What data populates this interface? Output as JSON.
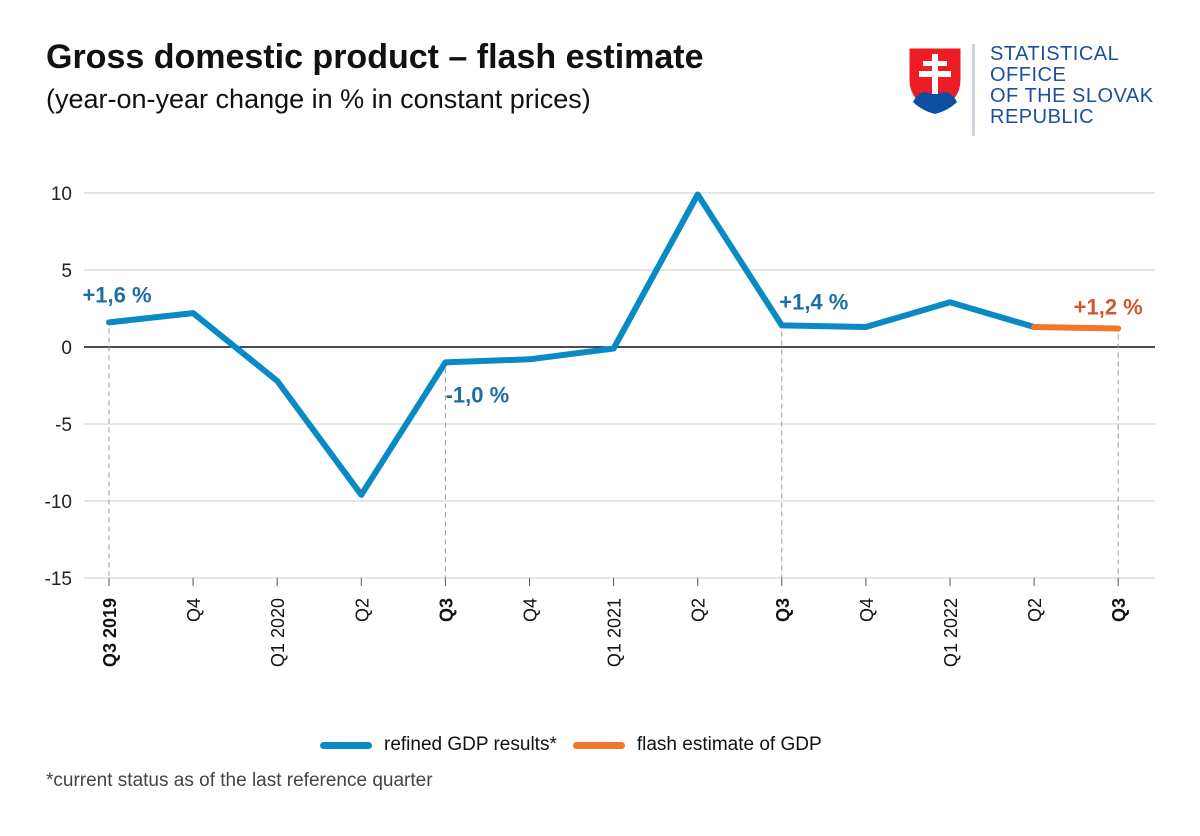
{
  "header": {
    "title": "Gross domestic product – flash estimate",
    "subtitle": "(year-on-year change in % in constant prices)"
  },
  "logo": {
    "lines": [
      "STATISTICAL",
      "OFFICE",
      "OF THE SLOVAK",
      "REPUBLIC"
    ],
    "emblem_icon": "slovak-coat-of-arms-icon",
    "text_color": "#1e4f9e"
  },
  "colors": {
    "refined": "#0a8ac4",
    "flash": "#f07826",
    "label_refined": "#1c6fa3",
    "label_flash": "#d2562a",
    "grid": "#cccccc",
    "zero_line": "#111111"
  },
  "chart_data": {
    "type": "line",
    "title": "Gross domestic product – flash estimate",
    "subtitle": "(year-on-year change in % in constant prices)",
    "categories": [
      "Q3 2019",
      "Q4",
      "Q1 2020",
      "Q2",
      "Q3",
      "Q4",
      "Q1 2021",
      "Q2",
      "Q3",
      "Q4",
      "Q1 2022",
      "Q2",
      "Q3"
    ],
    "bold_categories": [
      "Q3 2019",
      "Q3",
      "Q3",
      "Q3"
    ],
    "bold_indices": [
      0,
      4,
      8,
      12
    ],
    "ylim": [
      -15,
      10
    ],
    "yticks": [
      -15,
      -10,
      -5,
      0,
      5,
      10
    ],
    "xlabel": "",
    "ylabel": "",
    "grid": true,
    "series": [
      {
        "name": "refined GDP results*",
        "values": [
          1.6,
          2.2,
          -2.2,
          -9.6,
          -1.0,
          -0.8,
          -0.1,
          9.9,
          1.4,
          1.3,
          2.9,
          1.3,
          null
        ]
      },
      {
        "name": "flash estimate of GDP",
        "values": [
          null,
          null,
          null,
          null,
          null,
          null,
          null,
          null,
          null,
          null,
          null,
          1.3,
          1.2
        ]
      }
    ],
    "annotations": [
      {
        "index": 0,
        "value": 1.6,
        "text": "+1,6 %",
        "series": "refined GDP results*"
      },
      {
        "index": 4,
        "value": -1.0,
        "text": "-1,0 %",
        "series": "refined GDP results*"
      },
      {
        "index": 8,
        "value": 1.4,
        "text": "+1,4 %",
        "series": "refined GDP results*"
      },
      {
        "index": 12,
        "value": 1.2,
        "text": "+1,2 %",
        "series": "flash estimate of GDP"
      }
    ],
    "legend": [
      "refined GDP results*",
      "flash estimate of GDP"
    ],
    "legend_position": "bottom"
  },
  "legend": {
    "refined_label": "refined GDP results*",
    "flash_label": "flash estimate of GDP"
  },
  "footnote": "*current status as of the last reference quarter"
}
